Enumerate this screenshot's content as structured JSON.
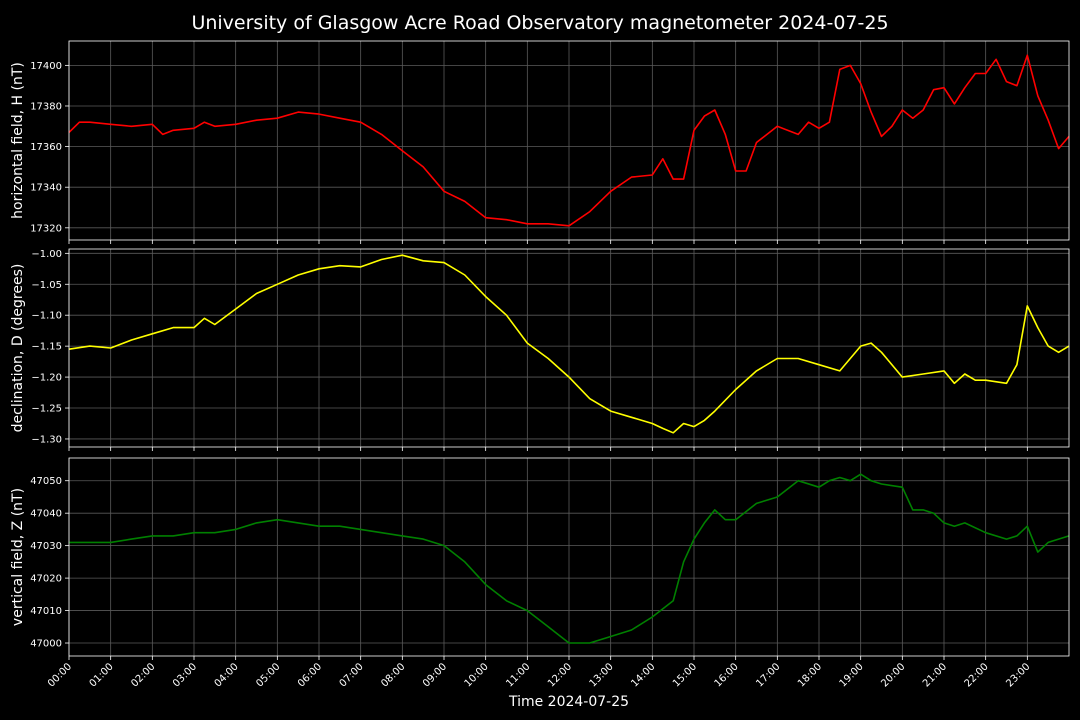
{
  "title": "University of Glasgow Acre Road Observatory magnetometer 2024-07-25",
  "colors": {
    "background": "#000000",
    "text": "#ffffff",
    "grid": "#5a5a5a"
  },
  "chart_data": [
    {
      "type": "line",
      "ylabel": "horizontal field, H (nT)",
      "color": "#ff0000",
      "ylim": [
        17314,
        17412
      ],
      "yticks": [
        17320,
        17340,
        17360,
        17380,
        17400
      ],
      "yticklabels": [
        "17320",
        "17340",
        "17360",
        "17380",
        "17400"
      ],
      "grid": true,
      "series": [
        {
          "x": [
            0,
            0.25,
            0.5,
            1,
            1.5,
            2,
            2.25,
            2.5,
            3,
            3.25,
            3.5,
            4,
            4.5,
            5,
            5.5,
            6,
            6.5,
            7,
            7.5,
            8,
            8.5,
            9,
            9.5,
            10,
            10.5,
            11,
            11.5,
            12,
            12.5,
            13,
            13.5,
            14,
            14.25,
            14.5,
            14.75,
            15,
            15.25,
            15.5,
            15.75,
            16,
            16.25,
            16.5,
            17,
            17.5,
            17.75,
            18,
            18.25,
            18.5,
            18.75,
            19,
            19.25,
            19.5,
            19.75,
            20,
            20.25,
            20.5,
            20.75,
            21,
            21.25,
            21.5,
            21.75,
            22,
            22.25,
            22.5,
            22.75,
            23,
            23.25,
            23.5,
            23.75,
            24
          ],
          "y": [
            17367,
            17372,
            17372,
            17371,
            17370,
            17371,
            17366,
            17368,
            17369,
            17372,
            17370,
            17371,
            17373,
            17374,
            17377,
            17376,
            17374,
            17372,
            17366,
            17358,
            17350,
            17338,
            17333,
            17325,
            17324,
            17322,
            17322,
            17321,
            17328,
            17338,
            17345,
            17346,
            17354,
            17344,
            17344,
            17368,
            17375,
            17378,
            17366,
            17348,
            17348,
            17362,
            17370,
            17366,
            17372,
            17369,
            17372,
            17398,
            17400,
            17391,
            17377,
            17365,
            17370,
            17378,
            17374,
            17378,
            17388,
            17389,
            17381,
            17389,
            17396,
            17396,
            17403,
            17392,
            17390,
            17405,
            17385,
            17373,
            17359,
            17365
          ]
        }
      ]
    },
    {
      "type": "line",
      "ylabel": "declination, D (degrees)",
      "color": "#ffff00",
      "ylim": [
        -1.313,
        -0.993
      ],
      "yticks": [
        -1.3,
        -1.25,
        -1.2,
        -1.15,
        -1.1,
        -1.05,
        -1.0
      ],
      "yticklabels": [
        "−1.30",
        "−1.25",
        "−1.20",
        "−1.15",
        "−1.10",
        "−1.05",
        "−1.00"
      ],
      "grid": true,
      "series": [
        {
          "x": [
            0,
            0.5,
            1,
            1.5,
            2,
            2.5,
            3,
            3.25,
            3.5,
            4,
            4.5,
            5,
            5.5,
            6,
            6.5,
            7,
            7.5,
            8,
            8.5,
            9,
            9.5,
            10,
            10.5,
            11,
            11.5,
            12,
            12.5,
            13,
            13.5,
            14,
            14.25,
            14.5,
            14.75,
            15,
            15.25,
            15.5,
            16,
            16.5,
            17,
            17.5,
            18,
            18.5,
            19,
            19.25,
            19.5,
            20,
            20.5,
            21,
            21.25,
            21.5,
            21.75,
            22,
            22.5,
            22.75,
            23,
            23.25,
            23.5,
            23.75,
            24
          ],
          "y": [
            -1.155,
            -1.15,
            -1.153,
            -1.14,
            -1.13,
            -1.12,
            -1.12,
            -1.105,
            -1.115,
            -1.09,
            -1.065,
            -1.05,
            -1.035,
            -1.025,
            -1.02,
            -1.022,
            -1.01,
            -1.003,
            -1.012,
            -1.015,
            -1.035,
            -1.07,
            -1.1,
            -1.145,
            -1.17,
            -1.2,
            -1.235,
            -1.255,
            -1.265,
            -1.275,
            -1.283,
            -1.29,
            -1.275,
            -1.28,
            -1.27,
            -1.255,
            -1.22,
            -1.19,
            -1.17,
            -1.17,
            -1.18,
            -1.19,
            -1.15,
            -1.145,
            -1.16,
            -1.2,
            -1.195,
            -1.19,
            -1.21,
            -1.195,
            -1.205,
            -1.205,
            -1.21,
            -1.18,
            -1.085,
            -1.12,
            -1.15,
            -1.16,
            -1.15
          ]
        }
      ]
    },
    {
      "type": "line",
      "ylabel": "vertical field, Z (nT)",
      "color": "#008000",
      "ylim": [
        46996,
        47057
      ],
      "yticks": [
        47000,
        47010,
        47020,
        47030,
        47040,
        47050
      ],
      "yticklabels": [
        "47000",
        "47010",
        "47020",
        "47030",
        "47040",
        "47050"
      ],
      "grid": true,
      "series": [
        {
          "x": [
            0,
            0.5,
            1,
            1.5,
            2,
            2.5,
            3,
            3.5,
            4,
            4.5,
            5,
            5.5,
            6,
            6.5,
            7,
            7.5,
            8,
            8.5,
            9,
            9.5,
            10,
            10.5,
            11,
            11.5,
            12,
            12.5,
            13,
            13.5,
            14,
            14.5,
            14.75,
            15,
            15.25,
            15.5,
            15.75,
            16,
            16.5,
            17,
            17.5,
            18,
            18.25,
            18.5,
            18.75,
            19,
            19.25,
            19.5,
            20,
            20.25,
            20.5,
            20.75,
            21,
            21.25,
            21.5,
            22,
            22.5,
            22.75,
            23,
            23.25,
            23.5,
            23.75,
            24
          ],
          "y": [
            47031,
            47031,
            47031,
            47032,
            47033,
            47033,
            47034,
            47034,
            47035,
            47037,
            47038,
            47037,
            47036,
            47036,
            47035,
            47034,
            47033,
            47032,
            47030,
            47025,
            47018,
            47013,
            47010,
            47005,
            47000,
            47000,
            47002,
            47004,
            47008,
            47013,
            47025,
            47032,
            47037,
            47041,
            47038,
            47038,
            47043,
            47045,
            47050,
            47048,
            47050,
            47051,
            47050,
            47052,
            47050,
            47049,
            47048,
            47041,
            47041,
            47040,
            47037,
            47036,
            47037,
            47034,
            47032,
            47033,
            47036,
            47028,
            47031,
            47032,
            47033
          ]
        }
      ]
    }
  ],
  "x_axis": {
    "label": "Time 2024-07-25",
    "range_hours": [
      0,
      24
    ],
    "ticks": [
      0,
      1,
      2,
      3,
      4,
      5,
      6,
      7,
      8,
      9,
      10,
      11,
      12,
      13,
      14,
      15,
      16,
      17,
      18,
      19,
      20,
      21,
      22,
      23
    ],
    "ticklabels": [
      "00:00",
      "01:00",
      "02:00",
      "03:00",
      "04:00",
      "05:00",
      "06:00",
      "07:00",
      "08:00",
      "09:00",
      "10:00",
      "11:00",
      "12:00",
      "13:00",
      "14:00",
      "15:00",
      "16:00",
      "17:00",
      "18:00",
      "19:00",
      "20:00",
      "21:00",
      "22:00",
      "23:00"
    ]
  }
}
